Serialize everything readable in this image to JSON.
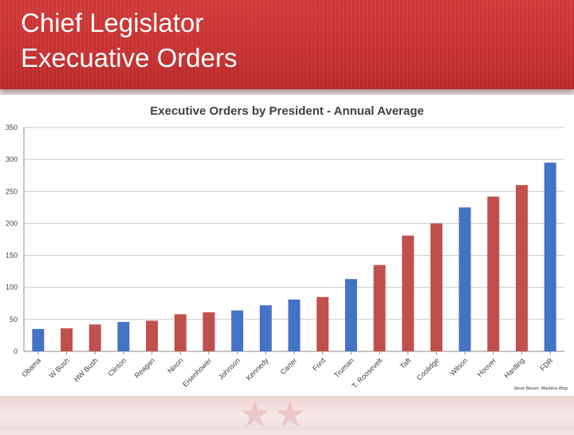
{
  "slide": {
    "title_line1": "Chief Legislator",
    "title_line2": "Execuative Orders"
  },
  "chart_data": {
    "type": "bar",
    "title": "Executive Orders by President - Annual Average",
    "source": "Steve Benen, Maddow Blog",
    "xlabel": "",
    "ylabel": "",
    "ylim": [
      0,
      350
    ],
    "yticks": [
      0,
      50,
      100,
      150,
      200,
      250,
      300,
      350
    ],
    "grid": true,
    "categories": [
      "Obama",
      "W Bush",
      "HW Bush",
      "Clinton",
      "Reagan",
      "Nixon",
      "Eisenhower",
      "Johnson",
      "Kennedy",
      "Carter",
      "Ford",
      "Truman",
      "T. Roosevelt",
      "Taft",
      "Coolidge",
      "Wilson",
      "Hoover",
      "Harding",
      "FDR"
    ],
    "values": [
      35,
      36,
      42,
      46,
      48,
      58,
      61,
      64,
      72,
      81,
      85,
      113,
      135,
      181,
      200,
      225,
      242,
      260,
      295
    ],
    "colors": [
      "#4472c4",
      "#c0504d",
      "#c0504d",
      "#4472c4",
      "#c0504d",
      "#c0504d",
      "#c0504d",
      "#4472c4",
      "#4472c4",
      "#4472c4",
      "#c0504d",
      "#4472c4",
      "#c0504d",
      "#c0504d",
      "#c0504d",
      "#4472c4",
      "#c0504d",
      "#c0504d",
      "#4472c4"
    ]
  }
}
